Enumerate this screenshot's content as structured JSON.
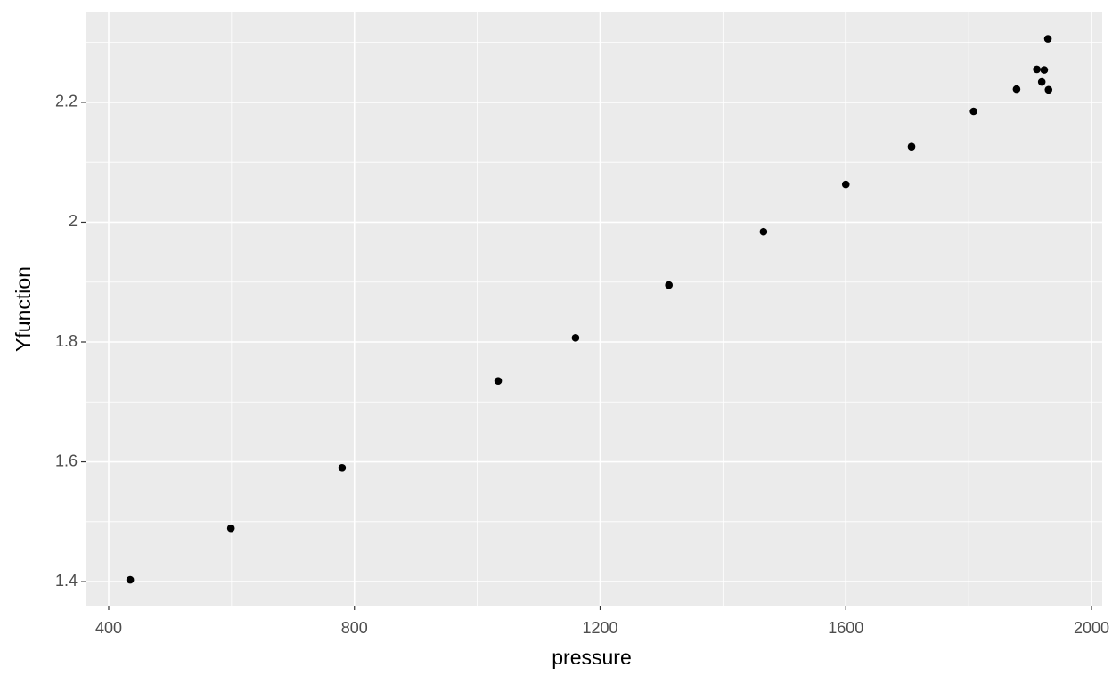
{
  "chart_data": {
    "type": "scatter",
    "x_label": "pressure",
    "y_label": "Yfunction",
    "x": [
      435,
      599,
      780,
      1034,
      1160,
      1312,
      1466,
      1600,
      1707,
      1808,
      1878,
      1911,
      1923,
      1919,
      1930,
      1929
    ],
    "values": [
      1.403,
      1.489,
      1.59,
      1.735,
      1.807,
      1.895,
      1.984,
      2.063,
      2.126,
      2.185,
      2.222,
      2.255,
      2.254,
      2.234,
      2.221,
      2.306
    ],
    "color": "#000000",
    "xlim": [
      362.3,
      2017.4
    ],
    "xticks": [
      400,
      800,
      1200,
      1600,
      2000
    ],
    "ylim": [
      1.36,
      2.35
    ],
    "yticks": [
      1.4,
      1.6,
      1.8,
      2.0,
      2.2
    ],
    "x_minor_breaks": [
      600,
      1000,
      1400,
      1800
    ],
    "y_minor_breaks": [
      1.5,
      1.7,
      1.9,
      2.1,
      2.3
    ],
    "grid": true
  }
}
